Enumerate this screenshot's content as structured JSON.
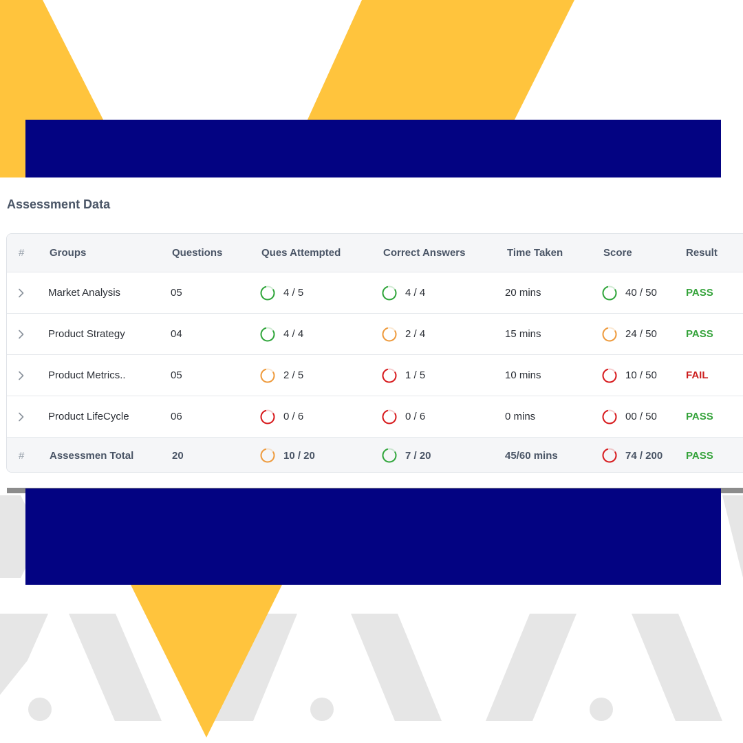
{
  "colors": {
    "yellow": "#FFC43D",
    "navy": "#030382",
    "pattern_gray": "#E6E6E6",
    "ring_green": "#2FA53A",
    "ring_orange": "#EE9A3C",
    "ring_red": "#D7191C",
    "pass_green": "#35A33B",
    "fail_red": "#CC1F1F"
  },
  "section": {
    "title": "Assessment Data"
  },
  "table": {
    "headers": {
      "hash": "#",
      "groups": "Groups",
      "questions": "Questions",
      "attempted": "Ques Attempted",
      "correct": "Correct Answers",
      "time": "Time Taken",
      "score": "Score",
      "result": "Result"
    },
    "rows": [
      {
        "group": "Market Analysis",
        "questions": "05",
        "attempted": {
          "text": "4 / 5",
          "fraction": 0.8,
          "status": "green"
        },
        "correct": {
          "text": "4 / 4",
          "fraction": 1.0,
          "status": "green"
        },
        "time": "20 mins",
        "score": {
          "text": "40 / 50",
          "fraction": 0.8,
          "status": "green"
        },
        "result": {
          "text": "PASS",
          "status": "pass"
        }
      },
      {
        "group": "Product Strategy",
        "questions": "04",
        "attempted": {
          "text": "4 / 4",
          "fraction": 1.0,
          "status": "green"
        },
        "correct": {
          "text": "2 / 4",
          "fraction": 0.5,
          "status": "orange"
        },
        "time": "15 mins",
        "score": {
          "text": "24 / 50",
          "fraction": 0.48,
          "status": "orange"
        },
        "result": {
          "text": "PASS",
          "status": "pass"
        }
      },
      {
        "group": "Product Metrics..",
        "questions": "05",
        "attempted": {
          "text": "2 / 5",
          "fraction": 0.4,
          "status": "orange"
        },
        "correct": {
          "text": "1 / 5",
          "fraction": 0.2,
          "status": "red"
        },
        "time": "10 mins",
        "score": {
          "text": "10 / 50",
          "fraction": 0.2,
          "status": "red"
        },
        "result": {
          "text": "FAIL",
          "status": "fail"
        }
      },
      {
        "group": "Product LifeCycle",
        "questions": "06",
        "attempted": {
          "text": "0 / 6",
          "fraction": 0.0,
          "status": "red"
        },
        "correct": {
          "text": "0 / 6",
          "fraction": 0.0,
          "status": "red"
        },
        "time": "0 mins",
        "score": {
          "text": "00 / 50",
          "fraction": 0.0,
          "status": "red"
        },
        "result": {
          "text": "PASS",
          "status": "pass"
        }
      }
    ],
    "total": {
      "hash": "#",
      "label": "Assessmen Total",
      "questions": "20",
      "attempted": {
        "text": "10 / 20",
        "fraction": 0.5,
        "status": "orange"
      },
      "correct": {
        "text": "7 / 20",
        "fraction": 0.35,
        "status": "green"
      },
      "time": "45/60 mins",
      "score": {
        "text": "74 / 200",
        "fraction": 0.37,
        "status": "red"
      },
      "result": {
        "text": "PASS",
        "status": "pass"
      }
    }
  }
}
